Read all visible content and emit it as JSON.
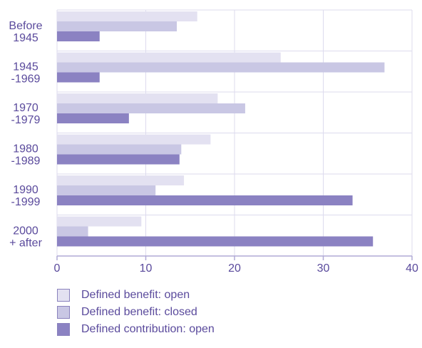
{
  "chart_data": {
    "type": "bar",
    "orientation": "horizontal",
    "categories": [
      [
        "Before",
        "1945"
      ],
      [
        "1945",
        "-1969"
      ],
      [
        "1970",
        "-1979"
      ],
      [
        "1980",
        "-1989"
      ],
      [
        "1990",
        "-1999"
      ],
      [
        "2000",
        "+ after"
      ]
    ],
    "series": [
      {
        "name": "Defined benefit: open",
        "color": "#e3e1f1",
        "values": [
          15.8,
          25.2,
          18.1,
          17.3,
          14.3,
          9.5
        ]
      },
      {
        "name": "Defined benefit: closed",
        "color": "#c9c7e4",
        "values": [
          13.5,
          36.9,
          21.2,
          14.0,
          11.1,
          3.5
        ]
      },
      {
        "name": "Defined contribution: open",
        "color": "#8b82c2",
        "values": [
          4.8,
          4.8,
          8.1,
          13.8,
          33.3,
          35.6
        ]
      }
    ],
    "xlim": [
      0,
      40
    ],
    "xticks": [
      0,
      10,
      20,
      30,
      40
    ],
    "title": "",
    "xlabel": "",
    "ylabel": "",
    "grid": "vertical",
    "legend_position": "bottom-left",
    "colors": {
      "text": "#5a4a9c",
      "grid": "#dddbee",
      "axis": "#b0aad6"
    }
  }
}
